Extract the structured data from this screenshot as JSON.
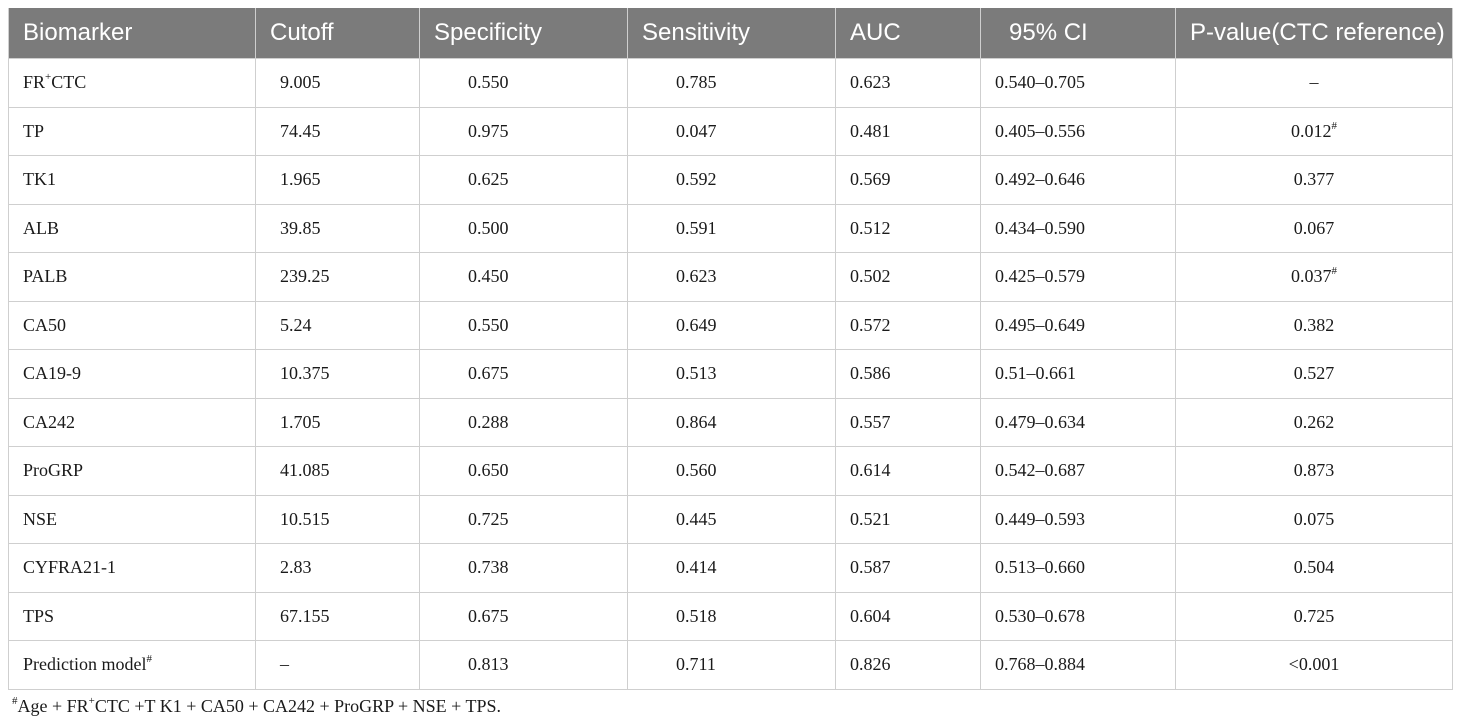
{
  "table": {
    "headers": [
      "Biomarker",
      "Cutoff",
      "Specificity",
      "Sensitivity",
      "AUC",
      "95% CI",
      "P-value(CTC reference)"
    ],
    "rows": [
      {
        "name_pre": "FR",
        "name_sup": "+",
        "name_post": "CTC",
        "cutoff": "9.005",
        "specificity": "0.550",
        "sensitivity": "0.785",
        "auc": "0.623",
        "ci": "0.540–0.705",
        "p": "–",
        "p_sup": ""
      },
      {
        "name_pre": "TP",
        "name_sup": "",
        "name_post": "",
        "cutoff": "74.45",
        "specificity": "0.975",
        "sensitivity": "0.047",
        "auc": "0.481",
        "ci": "0.405–0.556",
        "p": "0.012",
        "p_sup": "#"
      },
      {
        "name_pre": "TK1",
        "name_sup": "",
        "name_post": "",
        "cutoff": "1.965",
        "specificity": "0.625",
        "sensitivity": "0.592",
        "auc": "0.569",
        "ci": "0.492–0.646",
        "p": "0.377",
        "p_sup": ""
      },
      {
        "name_pre": "ALB",
        "name_sup": "",
        "name_post": "",
        "cutoff": "39.85",
        "specificity": "0.500",
        "sensitivity": "0.591",
        "auc": "0.512",
        "ci": "0.434–0.590",
        "p": "0.067",
        "p_sup": ""
      },
      {
        "name_pre": "PALB",
        "name_sup": "",
        "name_post": "",
        "cutoff": "239.25",
        "specificity": "0.450",
        "sensitivity": "0.623",
        "auc": "0.502",
        "ci": "0.425–0.579",
        "p": "0.037",
        "p_sup": "#"
      },
      {
        "name_pre": "CA50",
        "name_sup": "",
        "name_post": "",
        "cutoff": "5.24",
        "specificity": "0.550",
        "sensitivity": "0.649",
        "auc": "0.572",
        "ci": "0.495–0.649",
        "p": "0.382",
        "p_sup": ""
      },
      {
        "name_pre": "CA19-9",
        "name_sup": "",
        "name_post": "",
        "cutoff": "10.375",
        "specificity": "0.675",
        "sensitivity": "0.513",
        "auc": "0.586",
        "ci": "0.51–0.661",
        "p": "0.527",
        "p_sup": ""
      },
      {
        "name_pre": "CA242",
        "name_sup": "",
        "name_post": "",
        "cutoff": "1.705",
        "specificity": "0.288",
        "sensitivity": "0.864",
        "auc": "0.557",
        "ci": "0.479–0.634",
        "p": "0.262",
        "p_sup": ""
      },
      {
        "name_pre": "ProGRP",
        "name_sup": "",
        "name_post": "",
        "cutoff": "41.085",
        "specificity": "0.650",
        "sensitivity": "0.560",
        "auc": "0.614",
        "ci": "0.542–0.687",
        "p": "0.873",
        "p_sup": ""
      },
      {
        "name_pre": "NSE",
        "name_sup": "",
        "name_post": "",
        "cutoff": "10.515",
        "specificity": "0.725",
        "sensitivity": "0.445",
        "auc": "0.521",
        "ci": "0.449–0.593",
        "p": "0.075",
        "p_sup": ""
      },
      {
        "name_pre": "CYFRA21-1",
        "name_sup": "",
        "name_post": "",
        "cutoff": "2.83",
        "specificity": "0.738",
        "sensitivity": "0.414",
        "auc": "0.587",
        "ci": "0.513–0.660",
        "p": "0.504",
        "p_sup": ""
      },
      {
        "name_pre": "TPS",
        "name_sup": "",
        "name_post": "",
        "cutoff": "67.155",
        "specificity": "0.675",
        "sensitivity": "0.518",
        "auc": "0.604",
        "ci": "0.530–0.678",
        "p": "0.725",
        "p_sup": ""
      },
      {
        "name_pre": "Prediction model",
        "name_sup": "#",
        "name_post": "",
        "cutoff": "–",
        "specificity": "0.813",
        "sensitivity": "0.711",
        "auc": "0.826",
        "ci": "0.768–0.884",
        "p": "<0.001",
        "p_sup": ""
      }
    ]
  },
  "footnote": {
    "marker": "#",
    "pre": "Age + FR",
    "sup": "+",
    "post": "CTC +T K1 + CA50 + CA242 + ProGRP + NSE + TPS."
  },
  "colors": {
    "header_background": "#7b7b7b",
    "header_text": "#ffffff",
    "grid_line": "#cfcfcf"
  }
}
